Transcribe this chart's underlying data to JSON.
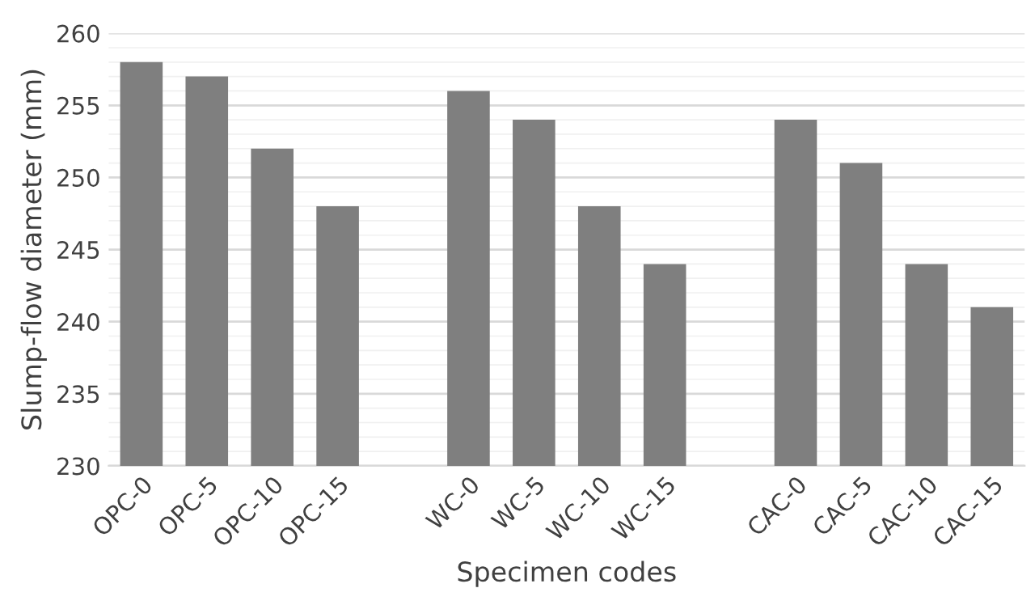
{
  "chart_data": {
    "type": "bar",
    "xlabel": "Specimen codes",
    "ylabel": "Slump-flow diameter (mm)",
    "categories": [
      "OPC-0",
      "OPC-5",
      "OPC-10",
      "OPC-15",
      null,
      "WC-0",
      "WC-5",
      "WC-10",
      "WC-15",
      null,
      "CAC-0",
      "CAC-5",
      "CAC-10",
      "CAC-15"
    ],
    "values": [
      258,
      257,
      252,
      248,
      null,
      256,
      254,
      248,
      244,
      null,
      254,
      251,
      244,
      241
    ],
    "color": "#7f7f7f",
    "ylim": [
      230,
      260
    ],
    "yticks": [
      230,
      235,
      240,
      245,
      250,
      255,
      260
    ],
    "grid": true
  }
}
